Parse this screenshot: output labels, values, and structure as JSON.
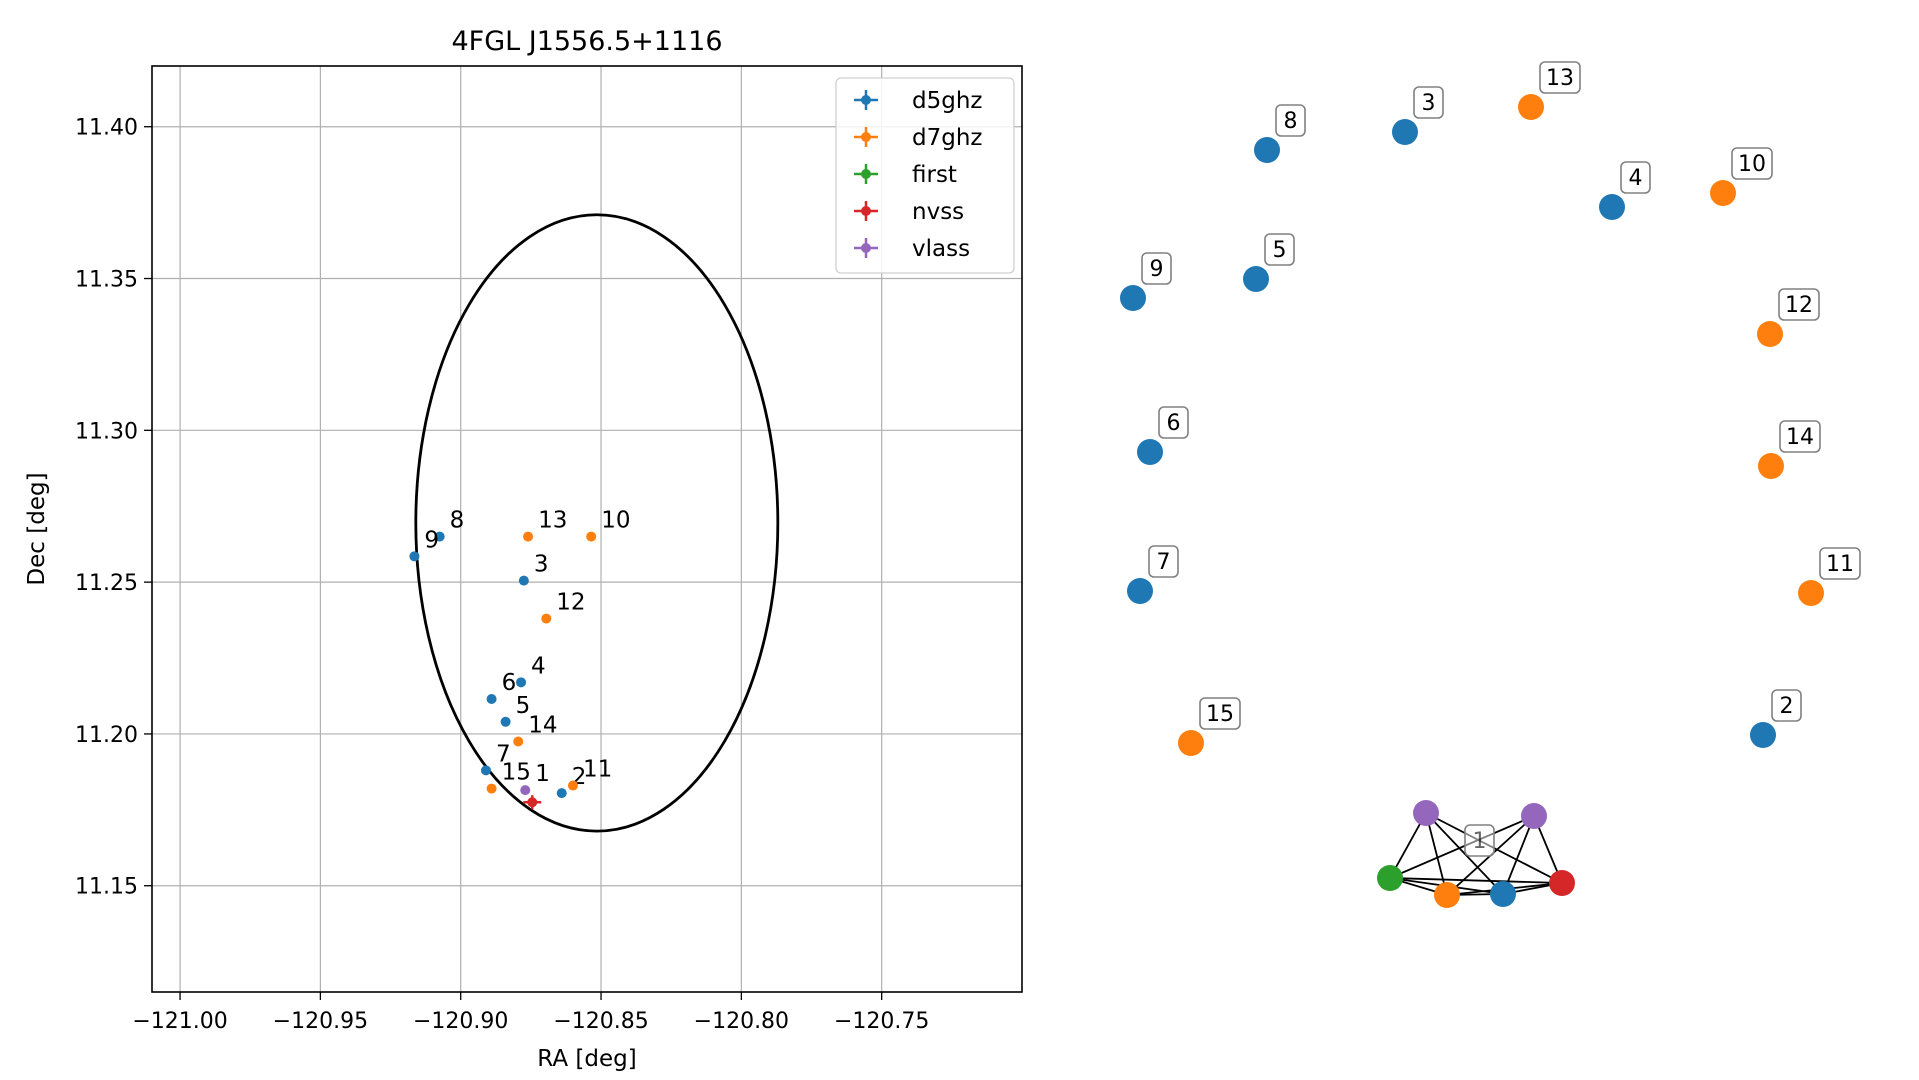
{
  "chart_data": [
    {
      "type": "scatter",
      "title": "4FGL J1556.5+1116",
      "xlabel": "RA [deg]",
      "ylabel": "Dec [deg]",
      "xlim": [
        -121.01,
        -120.7
      ],
      "ylim": [
        11.115,
        11.42
      ],
      "xticks": [
        -121.0,
        -120.95,
        -120.9,
        -120.85,
        -120.8,
        -120.75
      ],
      "xtick_labels": [
        "−121.00",
        "−120.95",
        "−120.90",
        "−120.85",
        "−120.80",
        "−120.75"
      ],
      "yticks": [
        11.15,
        11.2,
        11.25,
        11.3,
        11.35,
        11.4
      ],
      "ytick_labels": [
        "11.15",
        "11.20",
        "11.25",
        "11.30",
        "11.35",
        "11.40"
      ],
      "grid": true,
      "legend_position": "top-right",
      "ellipse": {
        "center_ra": -120.8515,
        "center_dec": 11.2695,
        "half_width_ra": 0.0645,
        "half_height_dec": 0.1015
      },
      "series": [
        {
          "name": "d5ghz",
          "color": "#1f77b4",
          "points": [
            {
              "label": "2",
              "ra": -120.864,
              "dec": 11.1805
            },
            {
              "label": "3",
              "ra": -120.8775,
              "dec": 11.2505
            },
            {
              "label": "4",
              "ra": -120.8785,
              "dec": 11.217
            },
            {
              "label": "5",
              "ra": -120.884,
              "dec": 11.204
            },
            {
              "label": "6",
              "ra": -120.889,
              "dec": 11.2115
            },
            {
              "label": "7",
              "ra": -120.891,
              "dec": 11.188
            },
            {
              "label": "8",
              "ra": -120.9075,
              "dec": 11.265
            },
            {
              "label": "9",
              "ra": -120.9165,
              "dec": 11.2585
            }
          ]
        },
        {
          "name": "d7ghz",
          "color": "#ff7f0e",
          "points": [
            {
              "label": "10",
              "ra": -120.8535,
              "dec": 11.265
            },
            {
              "label": "11",
              "ra": -120.86,
              "dec": 11.183
            },
            {
              "label": "12",
              "ra": -120.8695,
              "dec": 11.238
            },
            {
              "label": "13",
              "ra": -120.876,
              "dec": 11.265
            },
            {
              "label": "14",
              "ra": -120.8795,
              "dec": 11.1975
            },
            {
              "label": "15",
              "ra": -120.889,
              "dec": 11.182
            }
          ]
        },
        {
          "name": "first",
          "color": "#2ca02c",
          "points": []
        },
        {
          "name": "nvss",
          "color": "#d62728",
          "points": [
            {
              "label": "",
              "ra": -120.8745,
              "dec": 11.1775
            }
          ]
        },
        {
          "name": "vlass",
          "color": "#9467bd",
          "points": [
            {
              "label": "1",
              "ra": -120.877,
              "dec": 11.1815
            }
          ]
        }
      ]
    },
    {
      "type": "network",
      "nodes": [
        {
          "id": "2",
          "group": "d5ghz",
          "labeled": true
        },
        {
          "id": "3",
          "group": "d5ghz",
          "labeled": true
        },
        {
          "id": "4",
          "group": "d5ghz",
          "labeled": true
        },
        {
          "id": "5",
          "group": "d5ghz",
          "labeled": true
        },
        {
          "id": "6",
          "group": "d5ghz",
          "labeled": true
        },
        {
          "id": "7",
          "group": "d5ghz",
          "labeled": true
        },
        {
          "id": "8",
          "group": "d5ghz",
          "labeled": true
        },
        {
          "id": "9",
          "group": "d5ghz",
          "labeled": true
        },
        {
          "id": "10",
          "group": "d7ghz",
          "labeled": true
        },
        {
          "id": "11",
          "group": "d7ghz",
          "labeled": true
        },
        {
          "id": "12",
          "group": "d7ghz",
          "labeled": true
        },
        {
          "id": "13",
          "group": "d7ghz",
          "labeled": true
        },
        {
          "id": "14",
          "group": "d7ghz",
          "labeled": true
        },
        {
          "id": "15",
          "group": "d7ghz",
          "labeled": true
        },
        {
          "id": "1",
          "group": "cluster",
          "labeled": true
        },
        {
          "id": "c-vlass-a",
          "group": "vlass",
          "labeled": false
        },
        {
          "id": "c-vlass-b",
          "group": "vlass",
          "labeled": false
        },
        {
          "id": "c-first",
          "group": "first",
          "labeled": false
        },
        {
          "id": "c-d7ghz",
          "group": "d7ghz",
          "labeled": false
        },
        {
          "id": "c-d5ghz",
          "group": "d5ghz",
          "labeled": false
        },
        {
          "id": "c-nvss",
          "group": "nvss",
          "labeled": false
        }
      ],
      "edges": [
        [
          "c-vlass-a",
          "c-first"
        ],
        [
          "c-vlass-a",
          "c-d7ghz"
        ],
        [
          "c-vlass-a",
          "c-d5ghz"
        ],
        [
          "c-vlass-a",
          "c-nvss"
        ],
        [
          "c-vlass-b",
          "c-first"
        ],
        [
          "c-vlass-b",
          "c-d7ghz"
        ],
        [
          "c-vlass-b",
          "c-d5ghz"
        ],
        [
          "c-vlass-b",
          "c-nvss"
        ],
        [
          "c-first",
          "c-d7ghz"
        ],
        [
          "c-first",
          "c-d5ghz"
        ],
        [
          "c-first",
          "c-nvss"
        ],
        [
          "c-d7ghz",
          "c-d5ghz"
        ],
        [
          "c-d7ghz",
          "c-nvss"
        ],
        [
          "c-d5ghz",
          "c-nvss"
        ]
      ]
    }
  ],
  "colors": {
    "d5ghz": "#1f77b4",
    "d7ghz": "#ff7f0e",
    "first": "#2ca02c",
    "nvss": "#d62728",
    "vlass": "#9467bd",
    "grid": "#b0b0b0"
  }
}
